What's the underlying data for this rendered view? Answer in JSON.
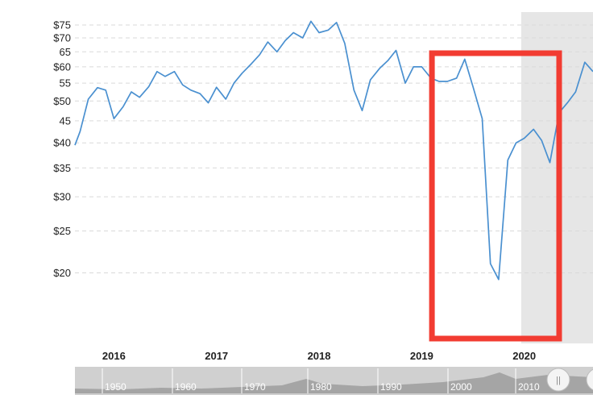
{
  "chart_data": {
    "type": "line",
    "log_scale": true,
    "grid": true,
    "ylim": [
      17.6,
      81
    ],
    "y_ticks": [
      {
        "value": 75,
        "label": "$75"
      },
      {
        "value": 70,
        "label": "$70"
      },
      {
        "value": 65,
        "label": "65"
      },
      {
        "value": 60,
        "label": "$60"
      },
      {
        "value": 55,
        "label": "55"
      },
      {
        "value": 50,
        "label": "$50"
      },
      {
        "value": 45,
        "label": "45"
      },
      {
        "value": 40,
        "label": "$40"
      },
      {
        "value": 35,
        "label": "$35"
      },
      {
        "value": 30,
        "label": "$30"
      },
      {
        "value": 25,
        "label": "$25"
      },
      {
        "value": 20,
        "label": "$20"
      }
    ],
    "x_ticks": [
      "2016",
      "2017",
      "2018",
      "2019",
      "2020"
    ],
    "x_range": [
      2015.7,
      2020.75
    ],
    "shaded_region": [
      2020.05,
      2020.75
    ],
    "highlight_box": [
      2019.18,
      2020.42
    ],
    "series": [
      {
        "color": "#4a90d0",
        "points": [
          [
            2015.7,
            39.5
          ],
          [
            2015.75,
            42.5
          ],
          [
            2015.83,
            50.5
          ],
          [
            2015.92,
            53.7
          ],
          [
            2016.0,
            53.0
          ],
          [
            2016.08,
            45.5
          ],
          [
            2016.17,
            48.5
          ],
          [
            2016.25,
            52.5
          ],
          [
            2016.33,
            51.0
          ],
          [
            2016.42,
            54.0
          ],
          [
            2016.5,
            58.5
          ],
          [
            2016.58,
            57.0
          ],
          [
            2016.67,
            58.5
          ],
          [
            2016.75,
            54.5
          ],
          [
            2016.83,
            53.0
          ],
          [
            2016.92,
            52.0
          ],
          [
            2017.0,
            49.5
          ],
          [
            2017.08,
            53.8
          ],
          [
            2017.17,
            50.5
          ],
          [
            2017.25,
            55.0
          ],
          [
            2017.33,
            58.0
          ],
          [
            2017.42,
            61.0
          ],
          [
            2017.5,
            64.0
          ],
          [
            2017.58,
            68.5
          ],
          [
            2017.67,
            65.0
          ],
          [
            2017.75,
            69.0
          ],
          [
            2017.83,
            72.0
          ],
          [
            2017.92,
            70.0
          ],
          [
            2018.0,
            76.5
          ],
          [
            2018.08,
            72.0
          ],
          [
            2018.17,
            73.0
          ],
          [
            2018.25,
            76.0
          ],
          [
            2018.33,
            68.0
          ],
          [
            2018.42,
            53.0
          ],
          [
            2018.5,
            47.5
          ],
          [
            2018.58,
            56.0
          ],
          [
            2018.67,
            59.5
          ],
          [
            2018.75,
            62.0
          ],
          [
            2018.83,
            65.5
          ],
          [
            2018.92,
            55.0
          ],
          [
            2019.0,
            60.0
          ],
          [
            2019.08,
            60.0
          ],
          [
            2019.17,
            56.5
          ],
          [
            2019.25,
            55.5
          ],
          [
            2019.33,
            55.5
          ],
          [
            2019.42,
            56.5
          ],
          [
            2019.5,
            62.5
          ],
          [
            2019.58,
            54.0
          ],
          [
            2019.67,
            45.5
          ],
          [
            2019.75,
            21.0
          ],
          [
            2019.83,
            19.3
          ],
          [
            2019.92,
            36.5
          ],
          [
            2020.0,
            40.0
          ],
          [
            2020.08,
            41.0
          ],
          [
            2020.17,
            43.0
          ],
          [
            2020.25,
            40.5
          ],
          [
            2020.33,
            36.0
          ],
          [
            2020.42,
            47.0
          ],
          [
            2020.5,
            49.5
          ],
          [
            2020.58,
            52.5
          ],
          [
            2020.67,
            61.5
          ],
          [
            2020.75,
            58.5
          ]
        ]
      }
    ]
  },
  "navigator": {
    "labels": [
      "1950",
      "1960",
      "1970",
      "1980",
      "1990",
      "2000",
      "2010"
    ],
    "handle_glyph": "||"
  },
  "colors": {
    "line": "#4a90d0",
    "shade": "#e6e6e6",
    "highlight": "#f23c32",
    "navigator_bg": "#d0d0d0",
    "navigator_area": "#9a9a9a"
  }
}
